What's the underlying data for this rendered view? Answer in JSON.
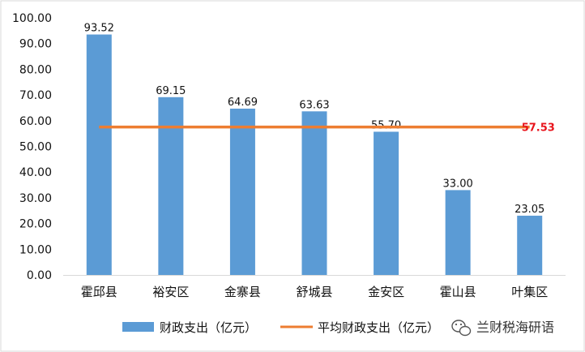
{
  "chart_data": {
    "type": "bar",
    "categories": [
      "霍邱县",
      "裕安区",
      "金寨县",
      "舒城县",
      "金安区",
      "霍山县",
      "叶集区"
    ],
    "series": [
      {
        "name": "财政支出（亿元）",
        "type": "bar",
        "values": [
          93.52,
          69.15,
          64.69,
          63.63,
          55.7,
          33.0,
          23.05
        ],
        "labels": [
          "93.52",
          "69.15",
          "64.69",
          "63.63",
          "55.70",
          "33.00",
          "23.05"
        ],
        "color": "#5b9bd5"
      },
      {
        "name": "平均财政支出（亿元）",
        "type": "line",
        "value": 57.53,
        "label": "57.53",
        "color": "#ed7d31",
        "label_color": "#e8131b"
      }
    ],
    "yticks": [
      "0.00",
      "10.00",
      "20.00",
      "30.00",
      "40.00",
      "50.00",
      "60.00",
      "70.00",
      "80.00",
      "90.00",
      "100.00"
    ],
    "ylim": [
      0,
      100
    ],
    "grid": false,
    "legend_position": "bottom",
    "title": "",
    "xlabel": "",
    "ylabel": ""
  },
  "watermark": {
    "icon": "wechat-icon",
    "text": "兰财税海研语"
  }
}
